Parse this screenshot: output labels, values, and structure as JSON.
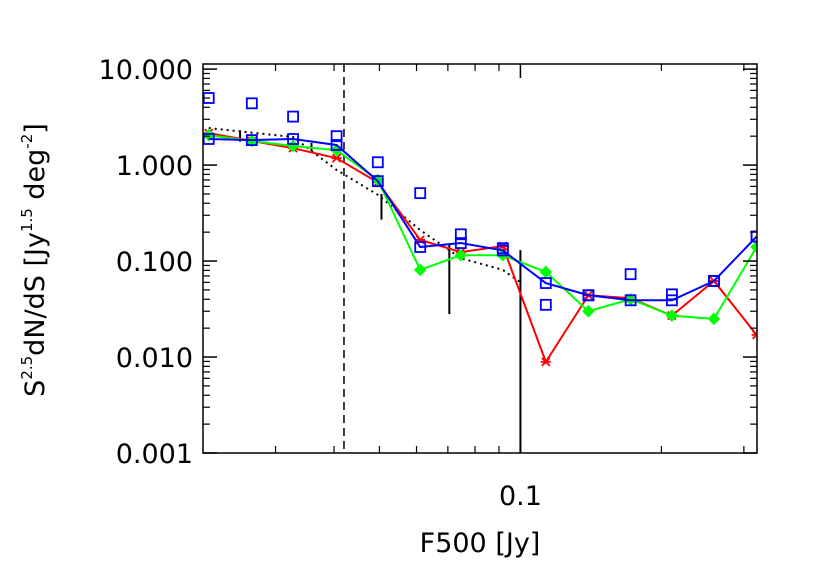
{
  "chart_data": {
    "type": "line",
    "x_label": "F500 [Jy]",
    "y_label_parts": [
      "S",
      "2.5",
      "dN/dS [Jy",
      "1.5",
      " deg",
      "-2",
      "]"
    ],
    "xscale": "log",
    "yscale": "log",
    "xlim": [
      0.021,
      0.32
    ],
    "ylim": [
      0.001,
      11.3
    ],
    "xticks": [
      {
        "value": 0.1,
        "label": "0.1"
      }
    ],
    "xminor": [
      0.03,
      0.04,
      0.05,
      0.06,
      0.07,
      0.08,
      0.09,
      0.2,
      0.3
    ],
    "yticks": [
      {
        "value": 0.001,
        "label": "0.001"
      },
      {
        "value": 0.01,
        "label": "0.010"
      },
      {
        "value": 0.1,
        "label": "0.100"
      },
      {
        "value": 1,
        "label": "1.000"
      },
      {
        "value": 10,
        "label": "10.000"
      }
    ],
    "yminor": [
      0.002,
      0.003,
      0.004,
      0.005,
      0.006,
      0.007,
      0.008,
      0.009,
      0.02,
      0.03,
      0.04,
      0.05,
      0.06,
      0.07,
      0.08,
      0.09,
      0.2,
      0.3,
      0.4,
      0.5,
      0.6,
      0.7,
      0.8,
      0.9,
      2,
      3,
      4,
      5,
      6,
      7,
      8,
      9
    ],
    "cut_x": 0.042,
    "x": [
      0.0216,
      0.0267,
      0.0327,
      0.0405,
      0.0496,
      0.0611,
      0.0746,
      0.0917,
      0.1133,
      0.1397,
      0.1719,
      0.2106,
      0.259,
      0.3194
    ],
    "series": [
      {
        "color": "#ff0000",
        "marker": "asterisk",
        "line": true,
        "values": [
          2.15,
          1.78,
          1.5,
          1.18,
          0.66,
          0.166,
          0.124,
          0.143,
          0.0089,
          0.044,
          0.041,
          0.027,
          0.062,
          0.017
        ]
      },
      {
        "color": "#00ff00",
        "marker": "diamond",
        "line": true,
        "values": [
          2.05,
          1.78,
          1.58,
          1.43,
          0.7,
          0.081,
          0.115,
          0.115,
          0.077,
          0.03,
          0.04,
          0.027,
          0.025,
          0.14
        ]
      },
      {
        "color": "#0000ff",
        "marker": "square",
        "line": true,
        "values": [
          1.87,
          1.82,
          1.87,
          1.62,
          0.68,
          0.14,
          0.154,
          0.129,
          0.059,
          0.044,
          0.039,
          0.039,
          0.062,
          0.18
        ]
      },
      {
        "color": "#0000ff",
        "marker": "square",
        "line": false,
        "values": [
          5.0,
          4.4,
          3.2,
          2.0,
          1.07,
          0.51,
          0.19,
          0.136,
          0.035,
          0.044,
          0.073,
          0.045,
          0.062,
          0.18
        ]
      }
    ],
    "model": {
      "color": "#000000",
      "x": [
        0.0216,
        0.0327,
        0.0405,
        0.0496,
        0.0611,
        0.0746,
        0.0917,
        0.1
      ],
      "values": [
        2.43,
        1.96,
        0.89,
        0.49,
        0.21,
        0.107,
        0.081,
        0.06
      ]
    },
    "model_ranges": {
      "x": [
        0.0252,
        0.0358,
        0.0505,
        0.0705,
        0.1
      ],
      "low": [
        1.75,
        1.4,
        0.27,
        0.028,
        0.001
      ],
      "high": [
        2.3,
        1.7,
        0.5,
        0.15,
        0.13
      ]
    }
  }
}
